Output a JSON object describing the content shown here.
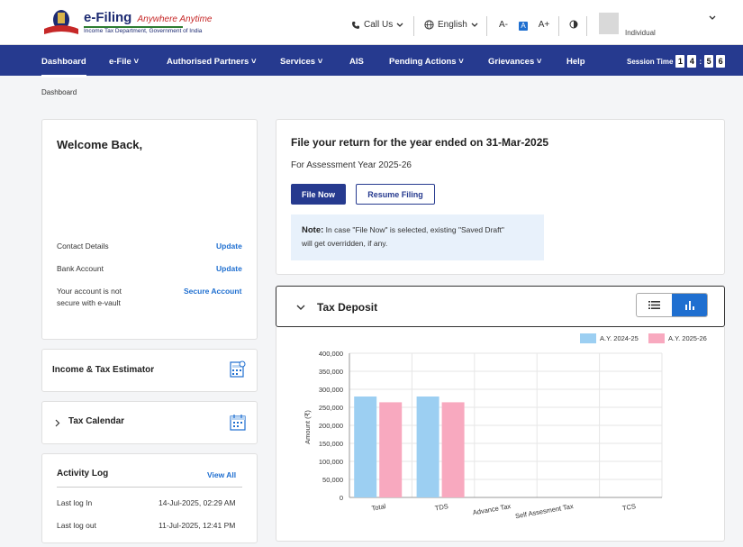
{
  "header": {
    "logo_title": "e-Filing",
    "logo_tagline": "Anywhere Anytime",
    "logo_subtitle": "Income Tax Department, Government of India",
    "call_us": "Call Us",
    "language": "English",
    "font_decrease": "A-",
    "font_normal": "A",
    "font_increase": "A+",
    "user_type": "Individual"
  },
  "nav": {
    "items": [
      "Dashboard",
      "e-File",
      "Authorised Partners",
      "Services",
      "AIS",
      "Pending Actions",
      "Grievances",
      "Help"
    ],
    "session_label": "Session Time",
    "session_digits": [
      "1",
      "4",
      ":",
      "5",
      "6"
    ]
  },
  "breadcrumb": "Dashboard",
  "profile": {
    "welcome": "Welcome Back,",
    "contact_label": "Contact Details",
    "contact_action": "Update",
    "bank_label": "Bank Account",
    "bank_action": "Update",
    "vault_label_1": "Your account is not",
    "vault_label_2": "secure with e-vault",
    "vault_action": "Secure Account"
  },
  "estimator": {
    "title": "Income & Tax Estimator"
  },
  "calendar": {
    "title": "Tax Calendar"
  },
  "activity": {
    "title": "Activity Log",
    "view_all": "View All",
    "last_in_label": "Last log In",
    "last_in_value": "14-Jul-2025, 02:29 AM",
    "last_out_label": "Last log out",
    "last_out_value": "11-Jul-2025, 12:41 PM"
  },
  "file_return": {
    "title": "File your return for the year ended on 31-Mar-2025",
    "assessment_year": "For Assessment Year 2025-26",
    "file_now": "File Now",
    "resume": "Resume Filing",
    "note_label": "Note:",
    "note_text_1": "In case \"File Now\" is selected, existing \"Saved Draft\"",
    "note_text_2": "will get overridden, if any."
  },
  "tax_deposit": {
    "title": "Tax Deposit"
  },
  "colors": {
    "series1": "#9ccff2",
    "series2": "#f8a9bf",
    "nav": "#263a8f",
    "link": "#1f6fd0"
  },
  "chart_data": {
    "type": "bar",
    "categories": [
      "Total",
      "TDS",
      "Advance Tax",
      "Self Assesment Tax",
      "TCS"
    ],
    "series": [
      {
        "name": "A.Y. 2024-25",
        "values": [
          280000,
          280000,
          0,
          0,
          0
        ]
      },
      {
        "name": "A.Y. 2025-26",
        "values": [
          264000,
          264000,
          0,
          0,
          0
        ]
      }
    ],
    "ylabel": "Amount (₹)",
    "ylim": [
      0,
      400000
    ],
    "yticks": [
      "0",
      "50,000",
      "100,000",
      "150,000",
      "200,000",
      "250,000",
      "300,000",
      "350,000",
      "400,000"
    ],
    "legend": "top-right",
    "grid": true
  }
}
